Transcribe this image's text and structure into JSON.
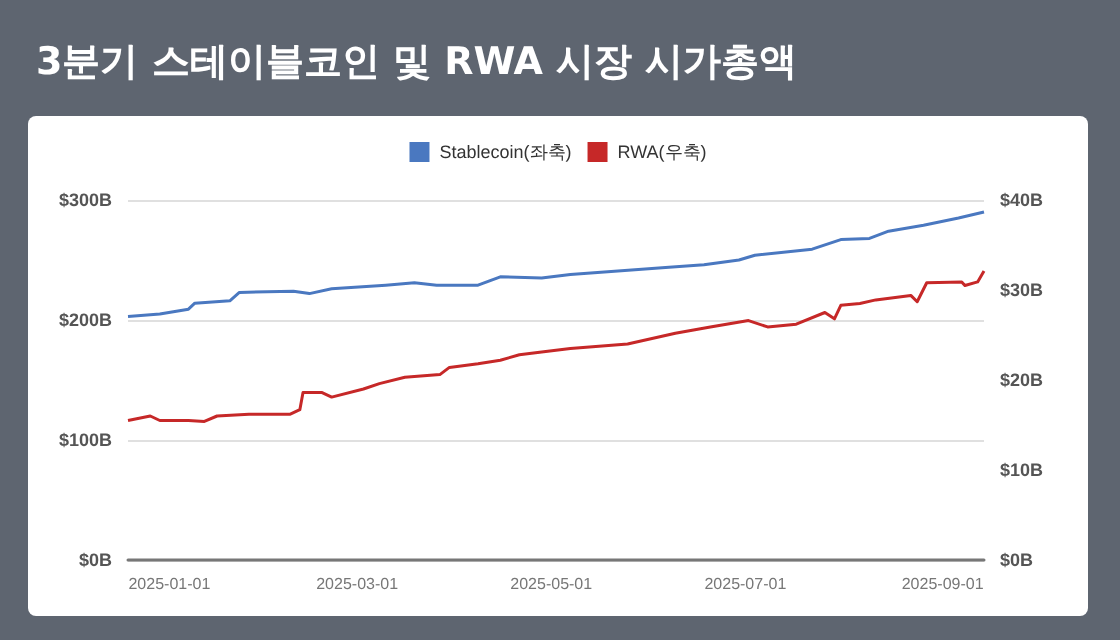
{
  "chart_data": {
    "type": "line",
    "title": "3분기 스테이블코인 및 RWA 시장 시가총액",
    "xlim": [
      "2024-12-19",
      "2025-09-14"
    ],
    "xticks": [
      {
        "value": "2025-01-01",
        "label": "2025-01-01"
      },
      {
        "value": "2025-03-01",
        "label": "2025-03-01"
      },
      {
        "value": "2025-05-01",
        "label": "2025-05-01"
      },
      {
        "value": "2025-07-01",
        "label": "2025-07-01"
      },
      {
        "value": "2025-09-01",
        "label": "2025-09-01"
      }
    ],
    "ylim": [
      0,
      300
    ],
    "yticks": [
      {
        "value": 0,
        "label": "$0B"
      },
      {
        "value": 100,
        "label": "$100B"
      },
      {
        "value": 200,
        "label": "$200B"
      },
      {
        "value": 300,
        "label": "$300B"
      }
    ],
    "y2lim": [
      0,
      40
    ],
    "y2ticks": [
      {
        "value": 0,
        "label": "$0B"
      },
      {
        "value": 10,
        "label": "$10B"
      },
      {
        "value": 20,
        "label": "$20B"
      },
      {
        "value": 30,
        "label": "$30B"
      },
      {
        "value": 40,
        "label": "$40B"
      }
    ],
    "grid": "y",
    "legend": "top",
    "marker": "none",
    "line_style": "solid",
    "series": [
      {
        "name": "Stablecoin(좌축)",
        "color": "#4a78c0",
        "x": [
          "2024-12-19",
          "2024-12-29",
          "2025-01-07",
          "2025-01-09",
          "2025-01-20",
          "2025-01-23",
          "2025-02-09",
          "2025-02-14",
          "2025-02-21",
          "2025-03-10",
          "2025-03-19",
          "2025-03-26",
          "2025-04-08",
          "2025-04-15",
          "2025-04-28",
          "2025-05-07",
          "2025-06-07",
          "2025-06-18",
          "2025-06-29",
          "2025-07-04",
          "2025-07-22",
          "2025-07-31",
          "2025-08-09",
          "2025-08-15",
          "2025-08-26",
          "2025-09-06",
          "2025-09-14"
        ],
        "values": [
          203,
          205,
          209,
          214,
          216,
          223,
          224,
          222,
          226,
          229,
          231,
          229,
          229,
          236,
          235,
          238,
          244,
          246,
          250,
          254,
          259,
          267,
          268,
          274,
          279,
          285,
          290
        ]
      },
      {
        "name": "RWA(우축)",
        "color": "#c62828",
        "axis": "y2",
        "x": [
          "2024-12-19",
          "2024-12-26",
          "2024-12-29",
          "2025-01-07",
          "2025-01-12",
          "2025-01-16",
          "2025-01-26",
          "2025-02-08",
          "2025-02-11",
          "2025-02-12",
          "2025-02-18",
          "2025-02-21",
          "2025-03-03",
          "2025-03-08",
          "2025-03-16",
          "2025-03-27",
          "2025-03-30",
          "2025-04-08",
          "2025-04-15",
          "2025-04-21",
          "2025-04-28",
          "2025-05-07",
          "2025-05-25",
          "2025-06-09",
          "2025-06-20",
          "2025-07-02",
          "2025-07-08",
          "2025-07-17",
          "2025-07-26",
          "2025-07-29",
          "2025-07-31",
          "2025-08-06",
          "2025-08-11",
          "2025-08-22",
          "2025-08-24",
          "2025-08-27",
          "2025-09-07",
          "2025-09-08",
          "2025-09-12",
          "2025-09-14"
        ],
        "values": [
          15.5,
          16.0,
          15.5,
          15.5,
          15.4,
          16.0,
          16.2,
          16.2,
          16.7,
          18.6,
          18.6,
          18.1,
          19.0,
          19.6,
          20.3,
          20.6,
          21.4,
          21.8,
          22.2,
          22.8,
          23.1,
          23.5,
          24.0,
          25.2,
          25.9,
          26.6,
          25.9,
          26.2,
          27.5,
          26.8,
          28.3,
          28.5,
          28.9,
          29.4,
          28.7,
          30.8,
          30.9,
          30.5,
          30.9,
          32.1
        ]
      }
    ]
  }
}
